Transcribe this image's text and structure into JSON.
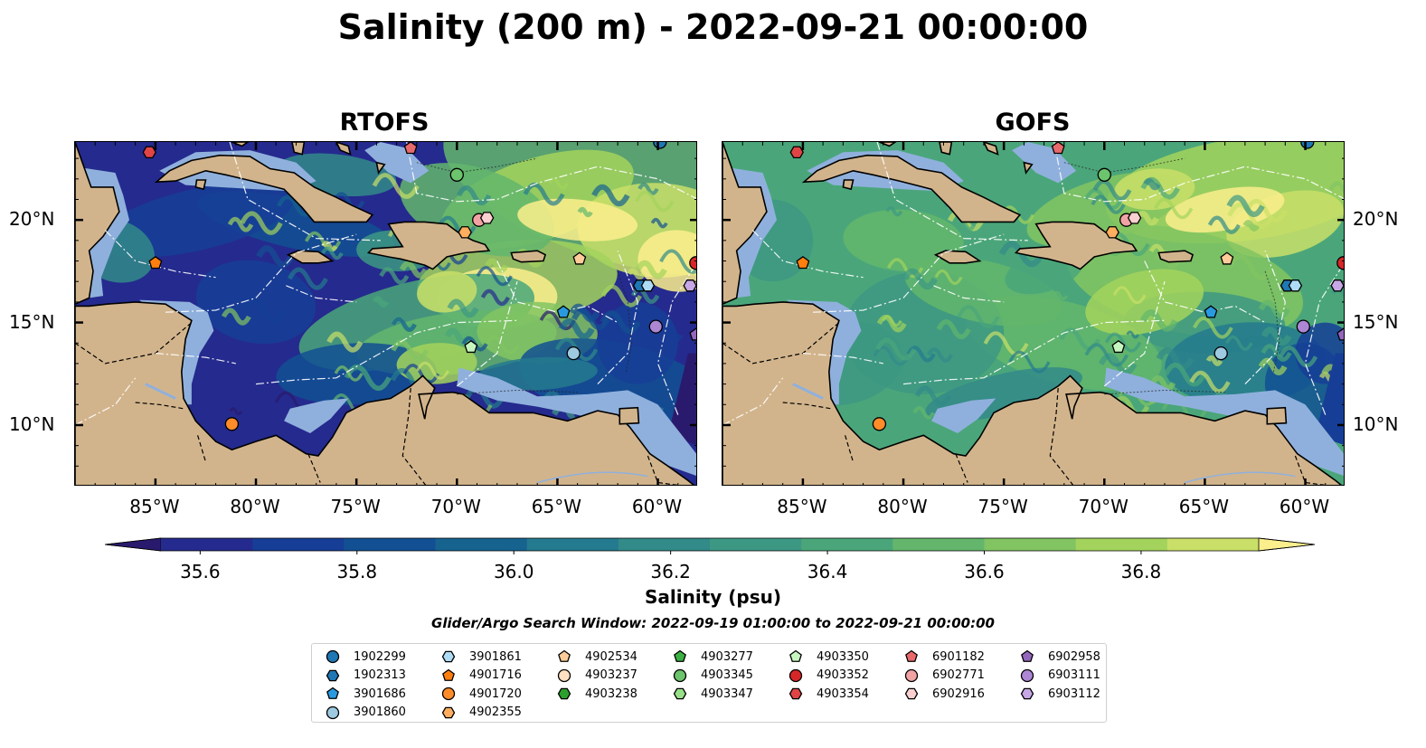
{
  "title": "Salinity (200 m) - 2022-09-21 00:00:00",
  "panels": [
    {
      "title": "RTOFS"
    },
    {
      "title": "GOFS"
    }
  ],
  "axes": {
    "x_ticks": [
      "85°W",
      "80°W",
      "75°W",
      "70°W",
      "65°W",
      "60°W"
    ],
    "x_tick_values": [
      -85,
      -80,
      -75,
      -70,
      -65,
      -60
    ],
    "y_ticks": [
      "20°N",
      "15°N",
      "10°N"
    ],
    "y_tick_values": [
      20,
      15,
      10
    ],
    "lon_range": [
      -89,
      -58
    ],
    "lat_range": [
      7,
      23.8
    ]
  },
  "colorbar": {
    "label": "Salinity (psu)",
    "ticks": [
      "35.6",
      "35.8",
      "36.0",
      "36.2",
      "36.4",
      "36.6",
      "36.8"
    ],
    "tick_values": [
      35.6,
      35.8,
      36.0,
      36.2,
      36.4,
      36.6,
      36.8
    ],
    "range": [
      35.55,
      36.95
    ],
    "extend": "both",
    "colormap": [
      "#2a1a6e",
      "#252a8e",
      "#163e96",
      "#125093",
      "#166390",
      "#247a8e",
      "#328a89",
      "#3d9883",
      "#4aa67a",
      "#63b66c",
      "#82c462",
      "#a3d35c",
      "#c9df68",
      "#fbee8c"
    ]
  },
  "search_window": "Glider/Argo Search Window: 2022-09-19 01:00:00 to 2022-09-21 00:00:00",
  "colors": {
    "land": "#d2b48c",
    "shelf": "#8fb0dc",
    "deep_ocean_rtofs": "#252e8f",
    "cyan": "#1f77b4"
  },
  "legend": {
    "columns": [
      [
        {
          "label": "1902299",
          "marker": "circle",
          "color": "#1f77b4"
        },
        {
          "label": "1902313",
          "marker": "hexagon",
          "color": "#1f77b4"
        },
        {
          "label": "3901686",
          "marker": "pentagon",
          "color": "#2a9ae0"
        },
        {
          "label": "3901860",
          "marker": "circle",
          "color": "#9ecae1"
        }
      ],
      [
        {
          "label": "3901861",
          "marker": "hexagon",
          "color": "#aedcf5"
        },
        {
          "label": "4901716",
          "marker": "pentagon",
          "color": "#ff7f0e"
        },
        {
          "label": "4901720",
          "marker": "circle",
          "color": "#ff8c28"
        },
        {
          "label": "4902355",
          "marker": "hexagon",
          "color": "#ffad5e"
        }
      ],
      [
        {
          "label": "4902534",
          "marker": "pentagon",
          "color": "#ffcc99"
        },
        {
          "label": "4903237",
          "marker": "circle",
          "color": "#ffe0c2"
        },
        {
          "label": "4903238",
          "marker": "hexagon",
          "color": "#2ca02c"
        }
      ],
      [
        {
          "label": "4903277",
          "marker": "pentagon",
          "color": "#3cb043"
        },
        {
          "label": "4903345",
          "marker": "circle",
          "color": "#6cc46c"
        },
        {
          "label": "4903347",
          "marker": "hexagon",
          "color": "#98df8a"
        }
      ],
      [
        {
          "label": "4903350",
          "marker": "pentagon",
          "color": "#c7f5c0"
        },
        {
          "label": "4903352",
          "marker": "circle",
          "color": "#d62728"
        },
        {
          "label": "4903354",
          "marker": "hexagon",
          "color": "#e04445"
        }
      ],
      [
        {
          "label": "6901182",
          "marker": "pentagon",
          "color": "#e8696b"
        },
        {
          "label": "6902771",
          "marker": "circle",
          "color": "#f1a3a3"
        },
        {
          "label": "6902916",
          "marker": "hexagon",
          "color": "#fbd0d0"
        }
      ],
      [
        {
          "label": "6902958",
          "marker": "pentagon",
          "color": "#9467bd"
        },
        {
          "label": "6903111",
          "marker": "circle",
          "color": "#ad86d4"
        },
        {
          "label": "6903112",
          "marker": "hexagon",
          "color": "#c7a7e6"
        }
      ]
    ]
  },
  "floats": [
    {
      "id": "1902299",
      "lon": -59.9,
      "lat": 23.8
    },
    {
      "id": "1902313",
      "lon": -60.9,
      "lat": 16.8
    },
    {
      "id": "3901686",
      "lon": -64.7,
      "lat": 15.5
    },
    {
      "id": "3901860",
      "lon": -64.2,
      "lat": 13.5
    },
    {
      "id": "3901861",
      "lon": -60.5,
      "lat": 16.8
    },
    {
      "id": "4901716",
      "lon": -85.0,
      "lat": 17.9
    },
    {
      "id": "4901720",
      "lon": -81.2,
      "lat": 10.05
    },
    {
      "id": "4902355",
      "lon": -69.6,
      "lat": 19.4
    },
    {
      "id": "4902534",
      "lon": -63.9,
      "lat": 18.1
    },
    {
      "id": "4903345",
      "lon": -70.0,
      "lat": 22.2
    },
    {
      "id": "4903350",
      "lon": -69.3,
      "lat": 13.8
    },
    {
      "id": "4903352",
      "lon": -58.1,
      "lat": 17.9
    },
    {
      "id": "4903354",
      "lon": -85.3,
      "lat": 23.3
    },
    {
      "id": "6901182",
      "lon": -72.3,
      "lat": 23.5
    },
    {
      "id": "6902771",
      "lon": -68.9,
      "lat": 20.0
    },
    {
      "id": "6902916",
      "lon": -68.5,
      "lat": 20.1
    },
    {
      "id": "6902958",
      "lon": -58.1,
      "lat": 14.4
    },
    {
      "id": "6903111",
      "lon": -60.1,
      "lat": 14.8
    },
    {
      "id": "6903112",
      "lon": -58.4,
      "lat": 16.8
    }
  ]
}
